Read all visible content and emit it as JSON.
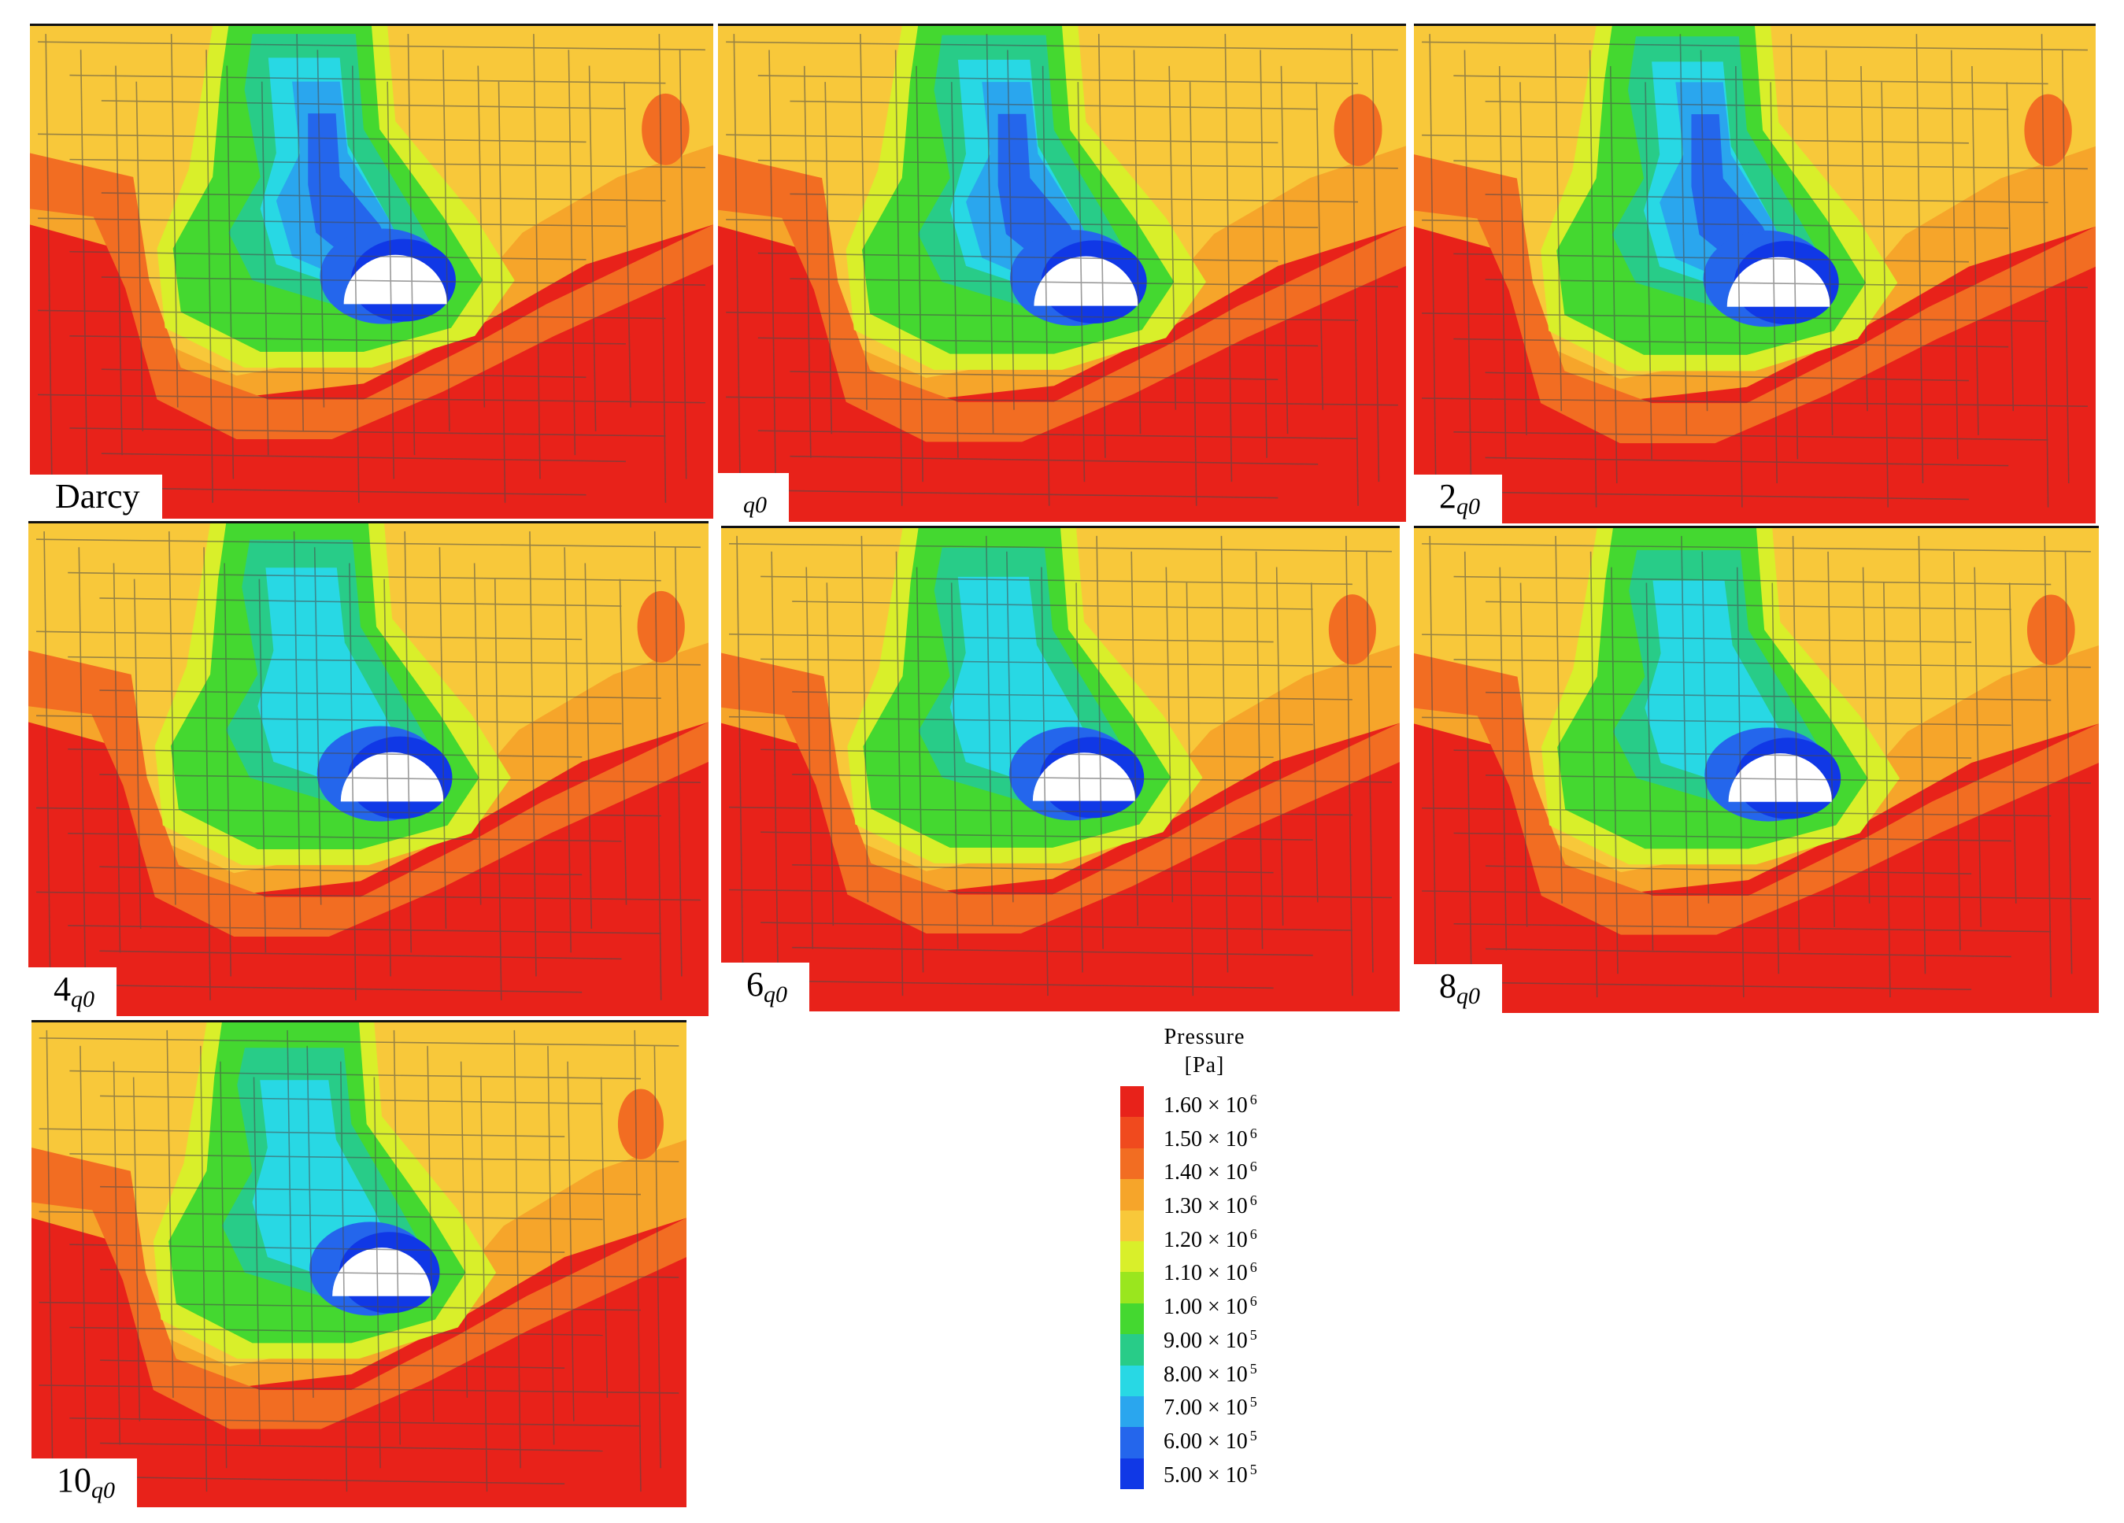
{
  "panels": [
    {
      "id": "darcy",
      "label": "Darcy",
      "coef": "",
      "sub": ""
    },
    {
      "id": "q0",
      "label": "",
      "coef": "",
      "sub": "q0"
    },
    {
      "id": "2q0",
      "label": "",
      "coef": "2",
      "sub": "q0"
    },
    {
      "id": "4q0",
      "label": "",
      "coef": "4",
      "sub": "q0"
    },
    {
      "id": "6q0",
      "label": "",
      "coef": "6",
      "sub": "q0"
    },
    {
      "id": "8q0",
      "label": "",
      "coef": "8",
      "sub": "q0"
    },
    {
      "id": "10q0",
      "label": "",
      "coef": "10",
      "sub": "q0"
    }
  ],
  "legend": {
    "title": "Pressure",
    "units": "[Pa]",
    "ticks": [
      {
        "mantissa": "1.60 × 10",
        "exp": "6"
      },
      {
        "mantissa": "1.50 × 10",
        "exp": "6"
      },
      {
        "mantissa": "1.40 × 10",
        "exp": "6"
      },
      {
        "mantissa": "1.30 × 10",
        "exp": "6"
      },
      {
        "mantissa": "1.20 × 10",
        "exp": "6"
      },
      {
        "mantissa": "1.10 × 10",
        "exp": "6"
      },
      {
        "mantissa": "1.00 × 10",
        "exp": "6"
      },
      {
        "mantissa": "9.00 × 10",
        "exp": "5"
      },
      {
        "mantissa": "8.00 × 10",
        "exp": "5"
      },
      {
        "mantissa": "7.00 × 10",
        "exp": "5"
      },
      {
        "mantissa": "6.00 × 10",
        "exp": "5"
      },
      {
        "mantissa": "5.00 × 10",
        "exp": "5"
      }
    ],
    "colors": [
      "#e8221a",
      "#f04a1e",
      "#f26d22",
      "#f6a52a",
      "#f8c83a",
      "#d9ef2a",
      "#9ae61e",
      "#44d830",
      "#28cc88",
      "#28d8e4",
      "#2aa6ee",
      "#2466ec",
      "#1038e6"
    ]
  }
}
